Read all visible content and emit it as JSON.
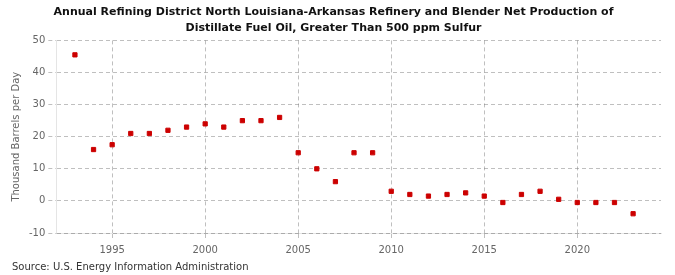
{
  "chart_data": {
    "type": "scatter",
    "title": "Annual Refining District North Louisiana-Arkansas Refinery and Blender Net Production of",
    "subtitle": "Distillate Fuel Oil, Greater Than 500 ppm Sulfur",
    "ylabel": "Thousand Barrels per Day",
    "annotation": "Source: U.S. Energy Information Administration",
    "x": [
      1993,
      1994,
      1995,
      1996,
      1997,
      1998,
      1999,
      2000,
      2001,
      2002,
      2003,
      2004,
      2005,
      2006,
      2007,
      2008,
      2009,
      2010,
      2011,
      2012,
      2013,
      2014,
      2015,
      2016,
      2017,
      2018,
      2019,
      2020,
      2021,
      2022,
      2023
    ],
    "values": [
      45.5,
      16.0,
      17.5,
      21.0,
      21.0,
      22.0,
      23.0,
      24.0,
      23.0,
      25.0,
      25.0,
      26.0,
      15.0,
      10.0,
      6.0,
      15.0,
      15.0,
      3.0,
      2.0,
      1.5,
      2.0,
      2.5,
      1.5,
      -0.5,
      2.0,
      3.0,
      0.5,
      -0.5,
      -0.5,
      -0.5,
      -4.0
    ],
    "color": "#cc0000",
    "marker": "square",
    "xlim": [
      1992.0,
      2024.5
    ],
    "xticks": [
      1995,
      2000,
      2005,
      2010,
      2015,
      2020
    ],
    "ylim": [
      -10,
      50
    ],
    "yticks": [
      -10,
      0,
      10,
      20,
      30,
      40,
      50
    ],
    "grid": true
  }
}
